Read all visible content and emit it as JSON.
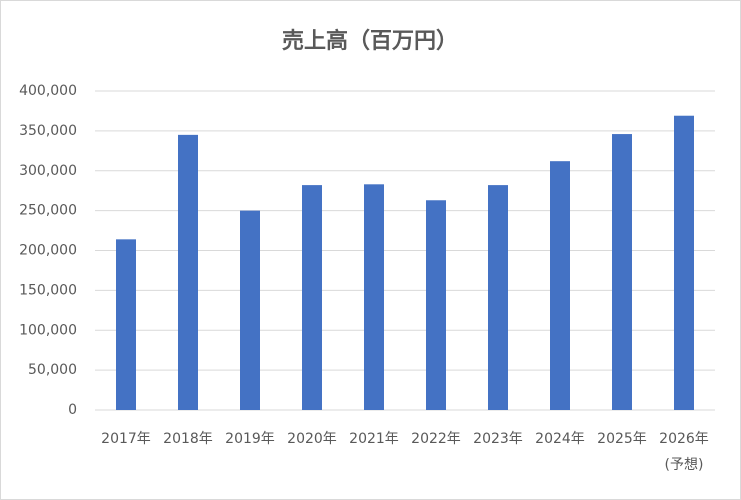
{
  "chart_data": {
    "type": "bar",
    "title": "売上高（百万円）",
    "categories": [
      "2017年",
      "2018年",
      "2019年",
      "2020年",
      "2021年",
      "2022年",
      "2023年",
      "2024年",
      "2025年",
      "2026年\n(予想)"
    ],
    "values": [
      214000,
      345000,
      250000,
      282000,
      283000,
      263000,
      282000,
      312000,
      346000,
      369000
    ],
    "color": "#4472c4",
    "ylim": [
      0,
      400000
    ],
    "yticks": [
      0,
      {
        "value": 50000,
        "label": "50,000"
      },
      {
        "value": 100000,
        "label": "100,000"
      },
      {
        "value": 150000,
        "label": "150,000"
      },
      {
        "value": 200000,
        "label": "200,000"
      },
      {
        "value": 250000,
        "label": "250,000"
      },
      {
        "value": 300000,
        "label": "300,000"
      },
      {
        "value": 350000,
        "label": "350,000"
      },
      {
        "value": 400000,
        "label": "400,000"
      }
    ],
    "grid": true
  }
}
